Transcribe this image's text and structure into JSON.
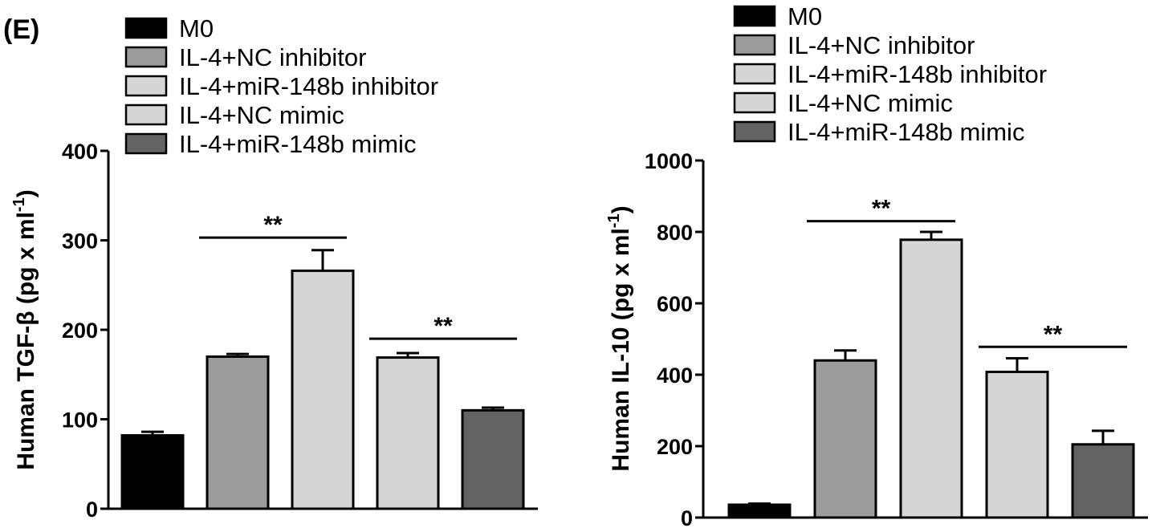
{
  "panel_label": "(E)",
  "colors": {
    "M0": "#000000",
    "IL-4+NC inhibitor": "#9b9b9b",
    "IL-4+miR-148b inhibitor": "#d6d6d6",
    "IL-4+NC mimic": "#d6d6d6",
    "IL-4+miR-148b mimic": "#636363"
  },
  "chart_data": [
    {
      "type": "bar",
      "title": "",
      "xlabel": "",
      "ylabel": "Human TGF-β (pg x ml",
      "ylabel_sup": "-1",
      "ylabel_close": ")",
      "categories": [
        "M0",
        "IL-4+NC inhibitor",
        "IL-4+miR-148b inhibitor",
        "IL-4+NC mimic",
        "IL-4+miR-148b mimic"
      ],
      "legend": [
        "M0",
        "IL-4+NC inhibitor",
        "IL-4+miR-148b inhibitor",
        "IL-4+NC mimic",
        "IL-4+miR-148b mimic"
      ],
      "values": [
        82,
        170,
        266,
        169,
        110
      ],
      "errors": [
        4,
        3,
        23,
        5,
        3
      ],
      "ylim": [
        0,
        400
      ],
      "yticks": [
        0,
        100,
        200,
        300,
        400
      ],
      "ytick_labels": [
        "0",
        "100",
        "200",
        "300",
        "400"
      ],
      "significance": [
        {
          "from": 1,
          "to": 2,
          "label": "**",
          "y": 303
        },
        {
          "from": 3,
          "to": 4,
          "label": "**",
          "y": 190
        }
      ]
    },
    {
      "type": "bar",
      "title": "",
      "xlabel": "",
      "ylabel": "Human IL-10 (pg x ml",
      "ylabel_sup": "-1",
      "ylabel_close": ")",
      "categories": [
        "M0",
        "IL-4+NC inhibitor",
        "IL-4+miR-148b inhibitor",
        "IL-4+NC mimic",
        "IL-4+miR-148b mimic"
      ],
      "legend": [
        "M0",
        "IL-4+NC inhibitor",
        "IL-4+miR-148b inhibitor",
        "IL-4+NC mimic",
        "IL-4+miR-148b mimic"
      ],
      "values": [
        36,
        440,
        778,
        408,
        205
      ],
      "errors": [
        3,
        28,
        22,
        38,
        38
      ],
      "ylim": [
        0,
        1000
      ],
      "yticks": [
        0,
        200,
        400,
        600,
        800,
        1000
      ],
      "ytick_labels": [
        "0",
        "200",
        "400",
        "600",
        "800",
        "1000"
      ],
      "significance": [
        {
          "from": 1,
          "to": 2,
          "label": "**",
          "y": 830
        },
        {
          "from": 3,
          "to": 4,
          "label": "**",
          "y": 478
        }
      ]
    }
  ]
}
